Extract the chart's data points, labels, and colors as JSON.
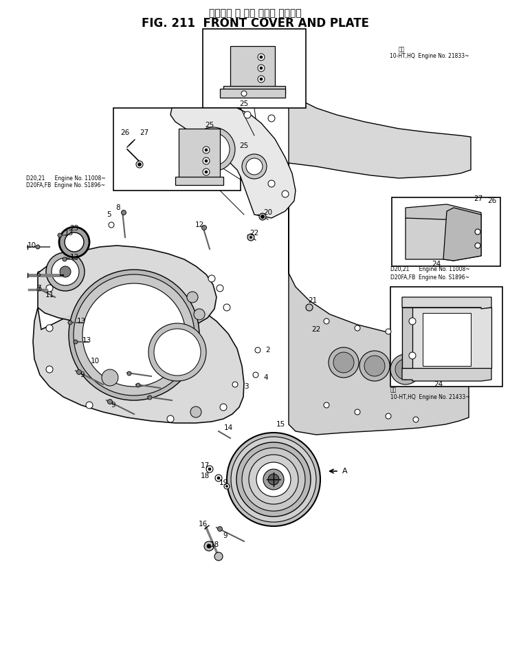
{
  "title_japanese": "フロント カ バー および プレート",
  "title_english": "FIG. 211  FRONT COVER AND PLATE",
  "bg_color": "#ffffff",
  "note1_kanji": "備考",
  "note1_line1": "10-HT,HQ  Engine No. 21833~",
  "note2_left1": "D20,21      Engine No. 11008~",
  "note2_left2": "D20FA,FB  Engine No. S1896~",
  "note3_right1": "D20,21      Engine No. 11008~",
  "note3_right2": "D20FA,FB  Engine No. S1896~",
  "note4_kanji": "備考",
  "note4_line1": "10-HT,HQ  Engine No. 21433~",
  "fs_title_jp": 10,
  "fs_title_en": 12,
  "fs_note": 6,
  "fs_part": 7.5
}
